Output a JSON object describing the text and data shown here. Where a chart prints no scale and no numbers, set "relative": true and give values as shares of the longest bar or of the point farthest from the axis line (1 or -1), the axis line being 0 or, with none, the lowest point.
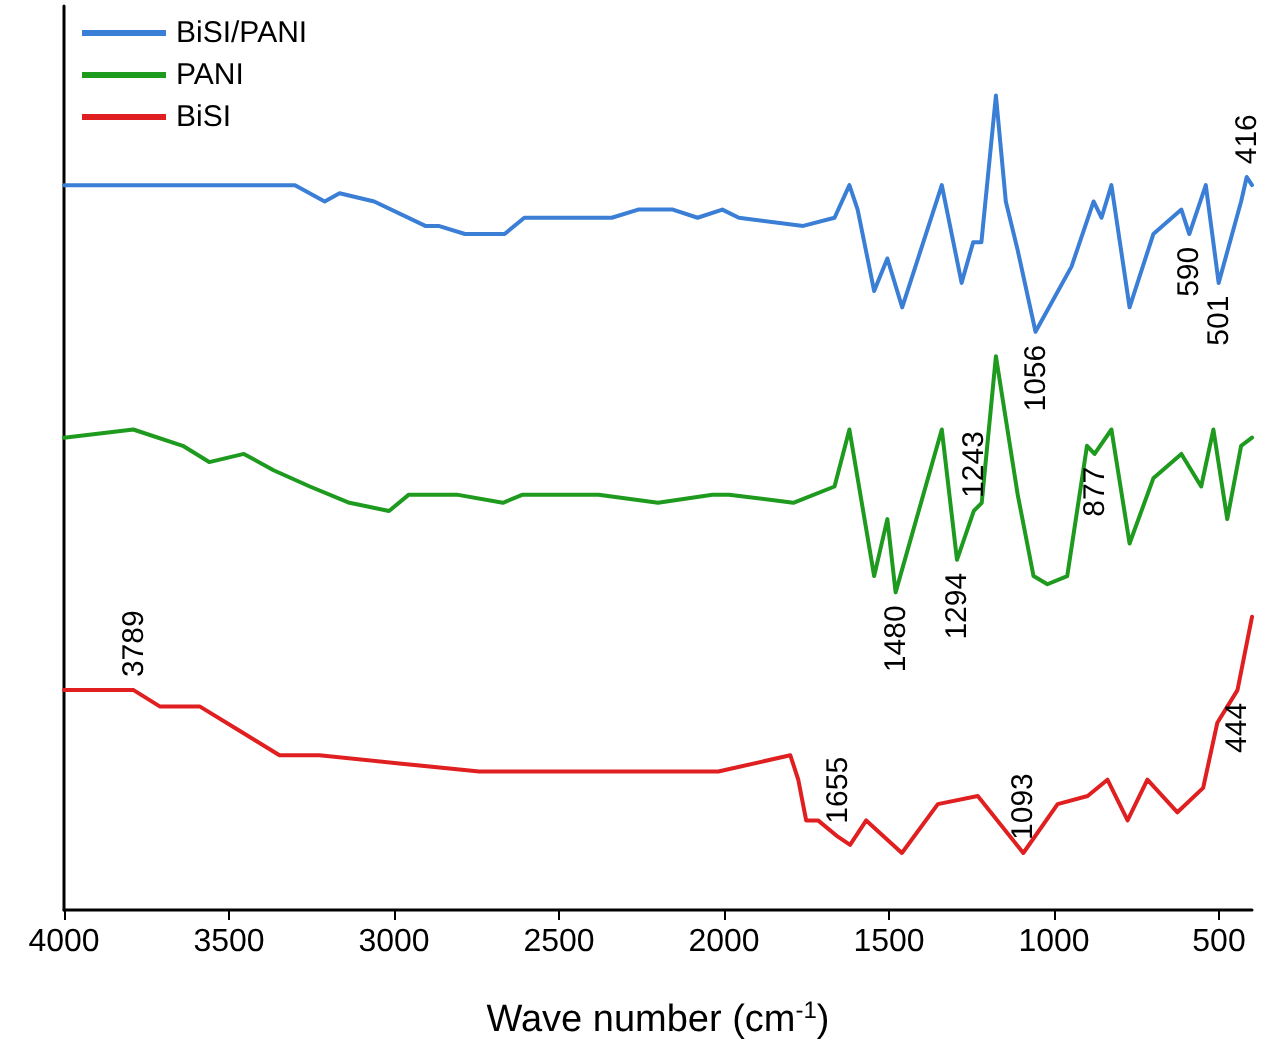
{
  "chart_data": {
    "type": "line",
    "relative": true,
    "xlabel": "Wave number (cm$^{-1}$)",
    "xlim": [
      4000,
      400
    ],
    "xticks": [
      4000,
      3500,
      3000,
      2500,
      2000,
      1500,
      1000,
      500
    ],
    "legend": "top left",
    "grid": false,
    "marker": "none",
    "line_style": "solid",
    "series": [
      {
        "name": "BiSI/PANI",
        "color": "#3a7fd5",
        "x": [
          4000,
          3890,
          3300,
          3210,
          3165,
          3060,
          2905,
          2865,
          2785,
          2665,
          2605,
          2460,
          2340,
          2260,
          2155,
          2080,
          2005,
          1955,
          1760,
          1665,
          1620,
          1595,
          1545,
          1505,
          1460,
          1340,
          1280,
          1245,
          1220,
          1176,
          1146,
          1110,
          1056,
          947,
          880,
          856,
          826,
          771,
          699,
          614,
          590,
          540,
          501,
          433,
          416,
          400
        ],
        "values": [
          0.89,
          0.89,
          0.89,
          0.87,
          0.88,
          0.87,
          0.84,
          0.84,
          0.83,
          0.83,
          0.85,
          0.85,
          0.85,
          0.86,
          0.86,
          0.85,
          0.86,
          0.85,
          0.84,
          0.85,
          0.89,
          0.86,
          0.76,
          0.8,
          0.74,
          0.89,
          0.77,
          0.82,
          0.82,
          1.0,
          0.87,
          0.81,
          0.71,
          0.79,
          0.87,
          0.85,
          0.89,
          0.74,
          0.83,
          0.86,
          0.83,
          0.89,
          0.77,
          0.87,
          0.9,
          0.89
        ]
      },
      {
        "name": "PANI",
        "color": "#1e9a1e",
        "x": [
          4000,
          3790,
          3640,
          3560,
          3455,
          3365,
          3255,
          3135,
          3015,
          2955,
          2810,
          2670,
          2610,
          2380,
          2200,
          2035,
          1985,
          1790,
          1665,
          1620,
          1545,
          1505,
          1480,
          1340,
          1294,
          1243,
          1219,
          1176,
          1110,
          1062,
          1020,
          960,
          900,
          877,
          826,
          771,
          699,
          614,
          554,
          517,
          475,
          433,
          400
        ],
        "values": [
          0.58,
          0.59,
          0.57,
          0.55,
          0.56,
          0.54,
          0.52,
          0.5,
          0.49,
          0.51,
          0.51,
          0.5,
          0.51,
          0.51,
          0.5,
          0.51,
          0.51,
          0.5,
          0.52,
          0.59,
          0.41,
          0.48,
          0.39,
          0.59,
          0.43,
          0.49,
          0.5,
          0.68,
          0.51,
          0.41,
          0.4,
          0.41,
          0.57,
          0.56,
          0.59,
          0.45,
          0.53,
          0.56,
          0.52,
          0.59,
          0.48,
          0.57,
          0.58
        ]
      },
      {
        "name": "BiSI",
        "color": "#e02020",
        "x": [
          4000,
          3843,
          3789,
          3710,
          3589,
          3468,
          3347,
          3226,
          2984,
          2742,
          2380,
          2017,
          1799,
          1775,
          1751,
          1715,
          1655,
          1618,
          1569,
          1461,
          1352,
          1231,
          1093,
          989,
          898,
          838,
          777,
          717,
          626,
          548,
          505,
          444,
          400
        ],
        "values": [
          0.27,
          0.27,
          0.27,
          0.25,
          0.25,
          0.22,
          0.19,
          0.19,
          0.18,
          0.17,
          0.17,
          0.17,
          0.19,
          0.16,
          0.11,
          0.11,
          0.09,
          0.08,
          0.11,
          0.07,
          0.13,
          0.14,
          0.07,
          0.13,
          0.14,
          0.16,
          0.11,
          0.16,
          0.12,
          0.15,
          0.23,
          0.27,
          0.36
        ]
      }
    ],
    "annotations": [
      {
        "text": "416",
        "x": 416,
        "y": 0.9
      },
      {
        "text": "590",
        "x": 590,
        "y": 0.83
      },
      {
        "text": "501",
        "x": 501,
        "y": 0.77
      },
      {
        "text": "1056",
        "x": 1056,
        "y": 0.71
      },
      {
        "text": "1243",
        "x": 1243,
        "y": 0.49
      },
      {
        "text": "1294",
        "x": 1294,
        "y": 0.43
      },
      {
        "text": "1480",
        "x": 1480,
        "y": 0.39
      },
      {
        "text": "877",
        "x": 877,
        "y": 0.56
      },
      {
        "text": "444",
        "x": 444,
        "y": 0.27
      },
      {
        "text": "3789",
        "x": 3789,
        "y": 0.27
      },
      {
        "text": "1655",
        "x": 1655,
        "y": 0.09
      },
      {
        "text": "1093",
        "x": 1093,
        "y": 0.07
      }
    ]
  }
}
